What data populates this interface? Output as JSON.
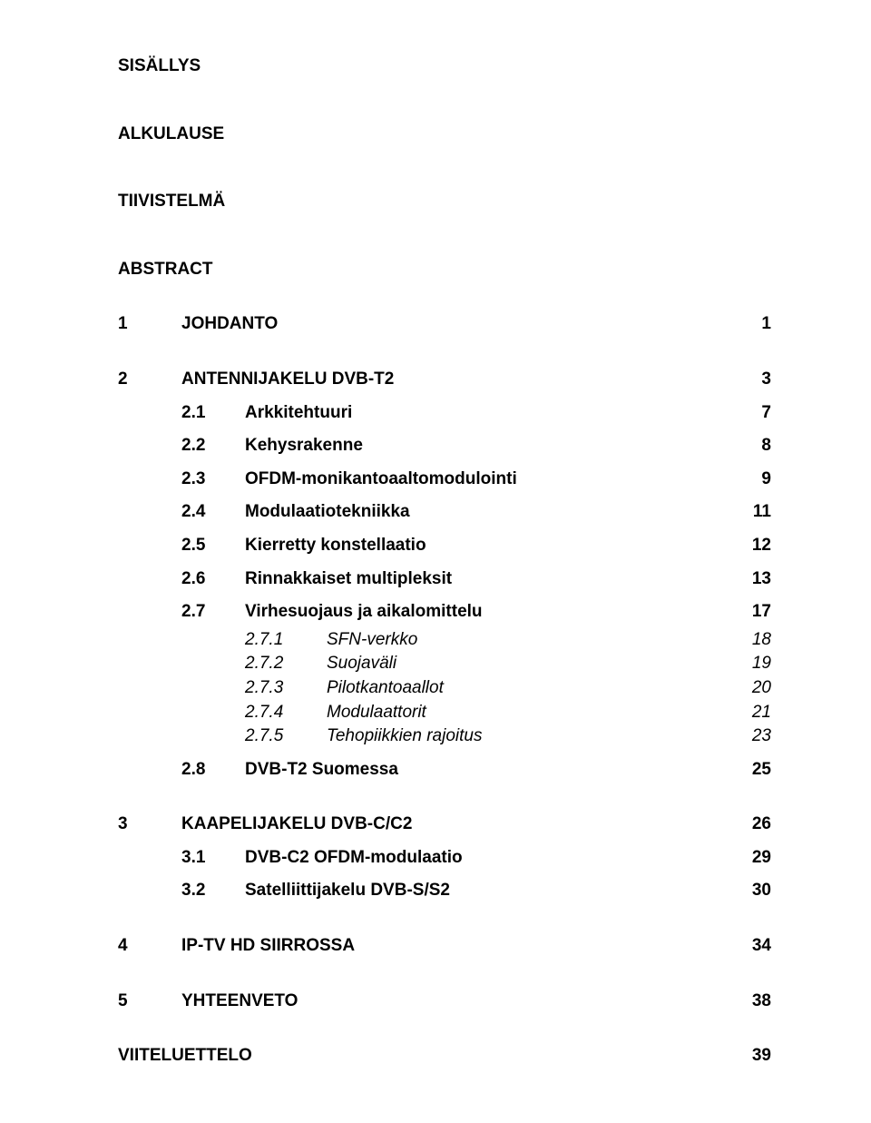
{
  "front": {
    "title1": "SISÄLLYS",
    "title2": "ALKULAUSE",
    "title3": "TIIVISTELMÄ",
    "title4": "ABSTRACT"
  },
  "s1": {
    "num": "1",
    "label": "JOHDANTO",
    "page": "1"
  },
  "s2": {
    "num": "2",
    "label": "ANTENNIJAKELU DVB-T2",
    "page": "3",
    "s1": {
      "num": "2.1",
      "label": "Arkkitehtuuri",
      "page": "7"
    },
    "s2": {
      "num": "2.2",
      "label": "Kehysrakenne",
      "page": "8"
    },
    "s3": {
      "num": "2.3",
      "label": "OFDM-monikantoaaltomodulointi",
      "page": "9"
    },
    "s4": {
      "num": "2.4",
      "label": "Modulaatiotekniikka",
      "page": "11"
    },
    "s5": {
      "num": "2.5",
      "label": "Kierretty konstellaatio",
      "page": "12"
    },
    "s6": {
      "num": "2.6",
      "label": "Rinnakkaiset multipleksit",
      "page": "13"
    },
    "s7": {
      "num": "2.7",
      "label": "Virhesuojaus ja aikalomittelu",
      "page": "17",
      "s1": {
        "num": "2.7.1",
        "label": "SFN-verkko",
        "page": "18"
      },
      "s2": {
        "num": "2.7.2",
        "label": "Suojaväli",
        "page": "19"
      },
      "s3": {
        "num": "2.7.3",
        "label": "Pilotkantoaallot",
        "page": "20"
      },
      "s4": {
        "num": "2.7.4",
        "label": "Modulaattorit",
        "page": "21"
      },
      "s5": {
        "num": "2.7.5",
        "label": "Tehopiikkien rajoitus",
        "page": "23"
      }
    },
    "s8": {
      "num": "2.8",
      "label": "DVB-T2 Suomessa",
      "page": "25"
    }
  },
  "s3": {
    "num": "3",
    "label": "KAAPELIJAKELU DVB-C/C2",
    "page": "26",
    "s1": {
      "num": "3.1",
      "label": "DVB-C2 OFDM-modulaatio",
      "page": "29"
    },
    "s2": {
      "num": "3.2",
      "label": "Satelliittijakelu DVB-S/S2",
      "page": "30"
    }
  },
  "s4": {
    "num": "4",
    "label": "IP-TV HD SIIRROSSA",
    "page": "34"
  },
  "s5": {
    "num": "5",
    "label": "YHTEENVETO",
    "page": "38"
  },
  "refs": {
    "label": "VIITELUETTELO",
    "page": "39"
  }
}
